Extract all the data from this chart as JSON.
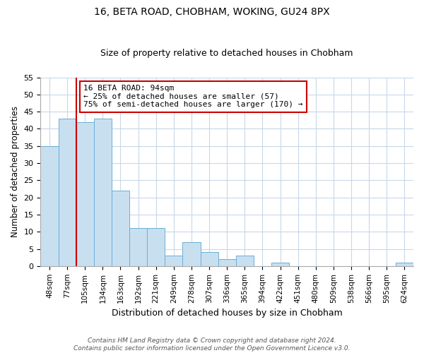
{
  "title": "16, BETA ROAD, CHOBHAM, WOKING, GU24 8PX",
  "subtitle": "Size of property relative to detached houses in Chobham",
  "xlabel": "Distribution of detached houses by size in Chobham",
  "ylabel": "Number of detached properties",
  "bin_labels": [
    "48sqm",
    "77sqm",
    "105sqm",
    "134sqm",
    "163sqm",
    "192sqm",
    "221sqm",
    "249sqm",
    "278sqm",
    "307sqm",
    "336sqm",
    "365sqm",
    "394sqm",
    "422sqm",
    "451sqm",
    "480sqm",
    "509sqm",
    "538sqm",
    "566sqm",
    "595sqm",
    "624sqm"
  ],
  "bar_heights": [
    35,
    43,
    42,
    43,
    22,
    11,
    11,
    3,
    7,
    4,
    2,
    3,
    0,
    1,
    0,
    0,
    0,
    0,
    0,
    0,
    1
  ],
  "bar_color": "#c8dff0",
  "bar_edge_color": "#6baed6",
  "annotation_title": "16 BETA ROAD: 94sqm",
  "annotation_line1": "← 25% of detached houses are smaller (57)",
  "annotation_line2": "75% of semi-detached houses are larger (170) →",
  "vline_color": "#cc0000",
  "ylim": [
    0,
    55
  ],
  "yticks": [
    0,
    5,
    10,
    15,
    20,
    25,
    30,
    35,
    40,
    45,
    50,
    55
  ],
  "footer_line1": "Contains HM Land Registry data © Crown copyright and database right 2024.",
  "footer_line2": "Contains public sector information licensed under the Open Government Licence v3.0.",
  "bg_color": "#ffffff",
  "grid_color": "#c8d8e8"
}
